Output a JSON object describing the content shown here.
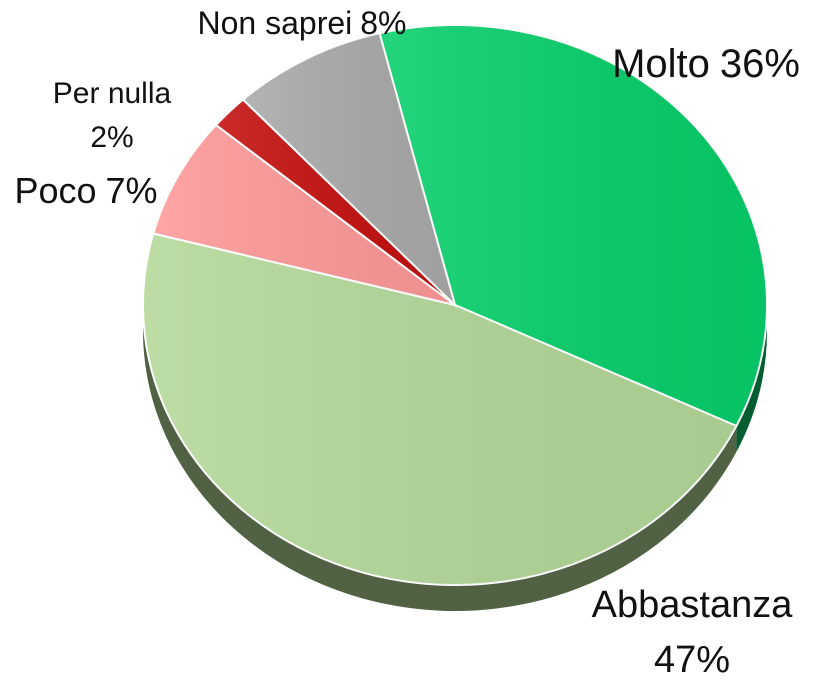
{
  "chart_data": {
    "type": "pie",
    "categories": [
      "Molto",
      "Abbastanza",
      "Poco",
      "Per nulla",
      "Non saprei"
    ],
    "values": [
      36,
      47,
      7,
      2,
      8
    ],
    "value_labels": [
      "36%",
      "47%",
      "7%",
      "2%",
      "8%"
    ],
    "colors": [
      "#06cf6a",
      "#b3d898",
      "#ff9999",
      "#c40e0e",
      "#aaaaaa"
    ]
  }
}
